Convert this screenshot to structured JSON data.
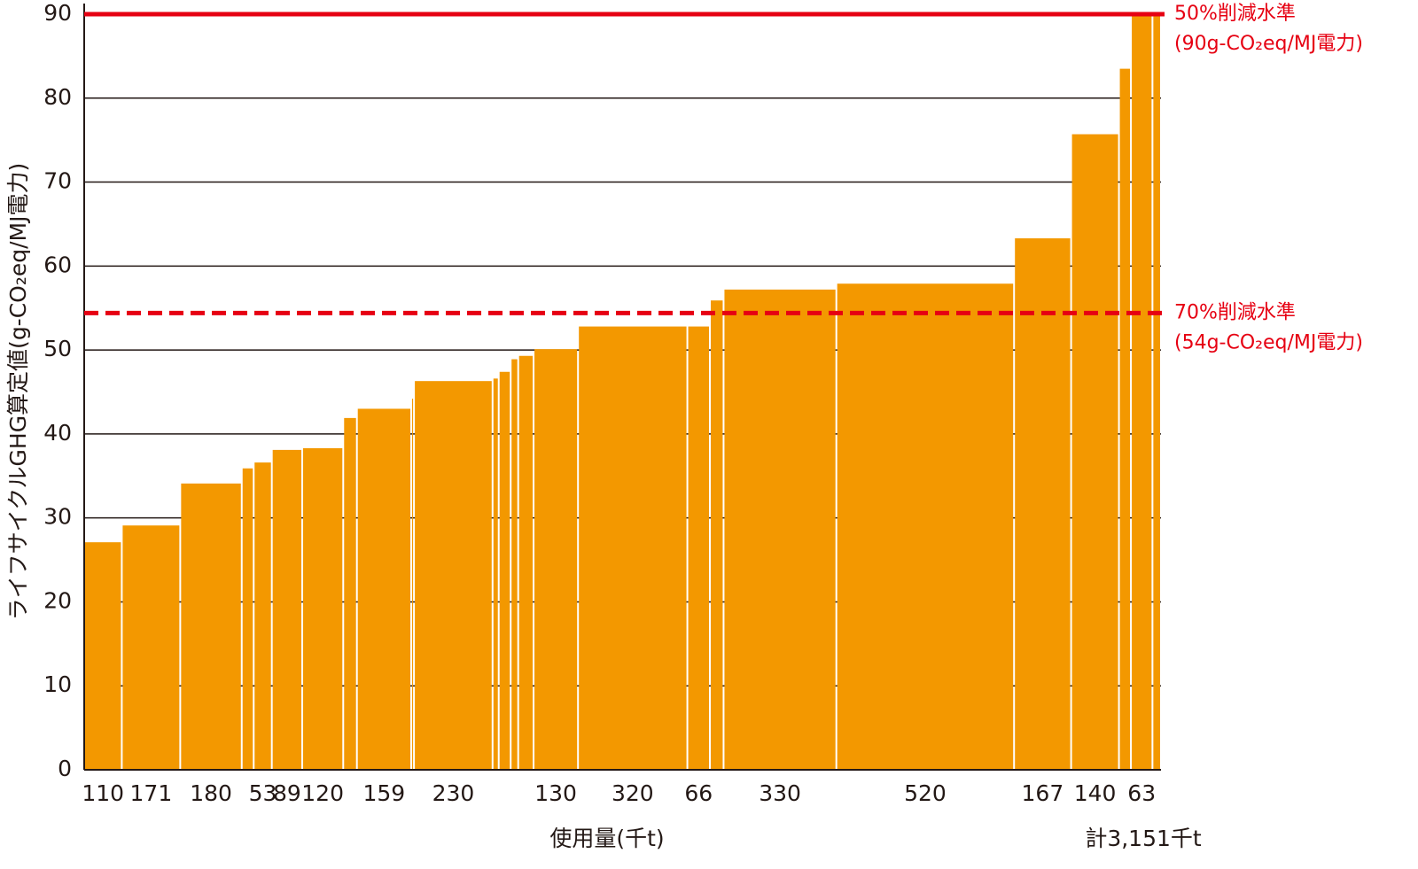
{
  "chart_data": {
    "type": "variable-width-bar",
    "y_label": "ライフサイクルGHG算定値(g-CO₂eq/MJ電力)",
    "x_label": "使用量(千t)",
    "total_label": "計3,151千t",
    "color": "#f39800",
    "categories": [
      "110",
      "171",
      "180",
      null,
      "53",
      "89",
      "120",
      null,
      "159",
      null,
      "230",
      null,
      null,
      null,
      null,
      "130",
      "320",
      "66",
      null,
      "330",
      "520",
      "167",
      "140",
      null,
      "63",
      null
    ],
    "widths": [
      110,
      171,
      180,
      35,
      53,
      89,
      120,
      40,
      159,
      8,
      230,
      18,
      35,
      22,
      45,
      130,
      320,
      66,
      40,
      330,
      520,
      167,
      140,
      35,
      63,
      25
    ],
    "values": [
      27.1,
      29.1,
      34.1,
      35.9,
      36.6,
      38.1,
      38.3,
      41.9,
      43.0,
      44.2,
      46.3,
      46.6,
      47.4,
      48.9,
      49.3,
      50.1,
      52.8,
      52.8,
      55.9,
      57.2,
      57.9,
      63.3,
      75.7,
      83.5,
      90,
      90
    ],
    "xlim": [
      0,
      3151
    ],
    "ylim": [
      0,
      90
    ],
    "yticks": [
      0,
      10,
      20,
      30,
      40,
      50,
      60,
      70,
      80,
      90
    ],
    "grid": true,
    "reference_lines": [
      {
        "value": 90,
        "style": "solid",
        "color": "#e60012",
        "label": [
          "50%削減水準",
          "(90g-CO₂eq/MJ電力)"
        ]
      },
      {
        "value": 54.4,
        "style": "dashed",
        "color": "#e60012",
        "label": [
          "70%削減水準",
          "(54g-CO₂eq/MJ電力)"
        ]
      }
    ]
  }
}
